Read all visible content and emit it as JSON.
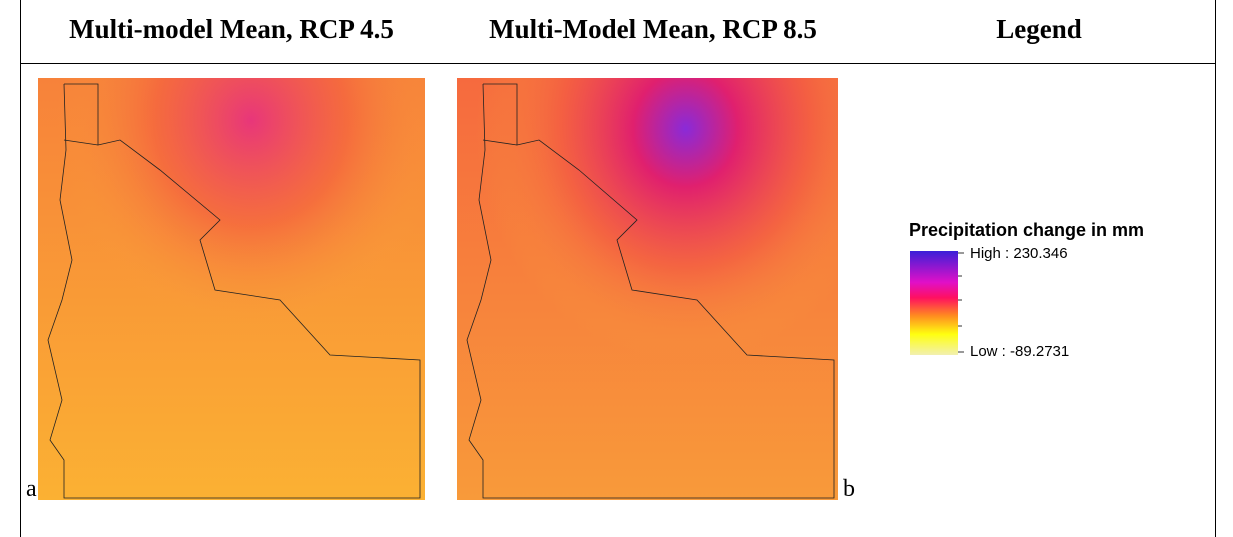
{
  "table": {
    "header": [
      "Multi-model Mean, RCP 4.5",
      "Multi-Model Mean, RCP 8.5",
      "Legend"
    ],
    "row": {
      "map_a_label": "a",
      "map_b_label": "b",
      "legend": {
        "title": "Precipitation change in mm",
        "high": "High : 230.346",
        "low": "Low : -89.2731"
      }
    }
  }
}
